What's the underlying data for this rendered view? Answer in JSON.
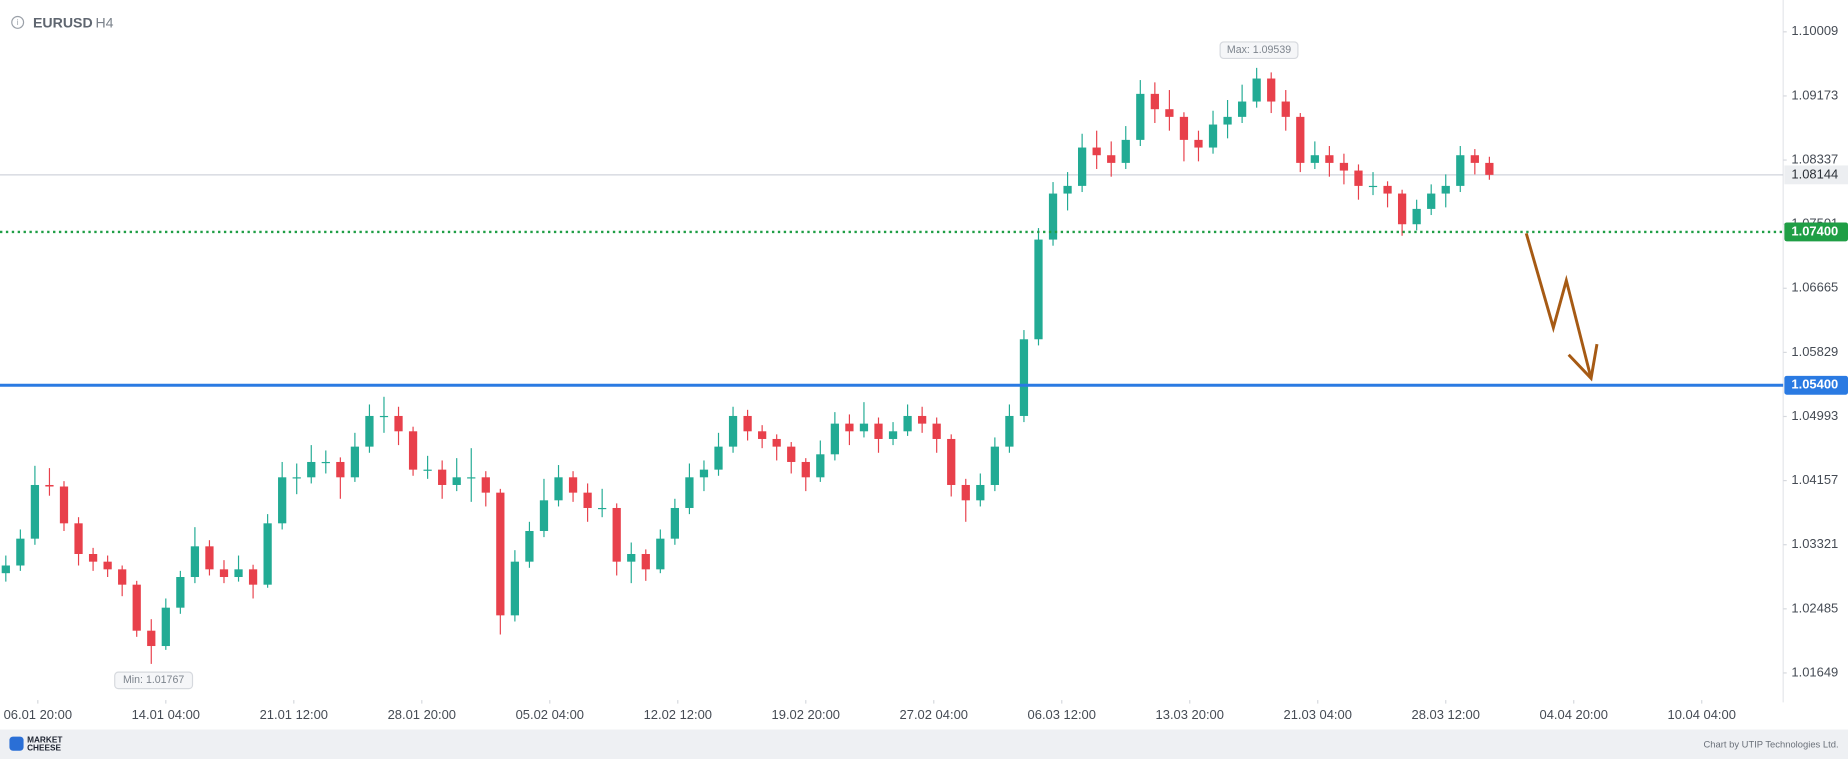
{
  "header": {
    "symbol": "EURUSD",
    "timeframe": "H4"
  },
  "footer": {
    "logo_top": "MARKET",
    "logo_bottom": "CHEESE",
    "credit": "Chart by UTIP Technologies Ltd."
  },
  "chart_data": {
    "type": "candlestick",
    "up_color": "#22ab94",
    "down_color": "#e8404b",
    "xlim": [
      -2,
      611
    ],
    "ylim": [
      1.01326,
      1.10424
    ],
    "xticks": [
      {
        "value": 11,
        "label": "06.01 20:00"
      },
      {
        "value": 55,
        "label": "14.01 04:00"
      },
      {
        "value": 99,
        "label": "21.01 12:00"
      },
      {
        "value": 143,
        "label": "28.01 20:00"
      },
      {
        "value": 187,
        "label": "05.02 04:00"
      },
      {
        "value": 231,
        "label": "12.02 12:00"
      },
      {
        "value": 275,
        "label": "19.02 20:00"
      },
      {
        "value": 319,
        "label": "27.02 04:00"
      },
      {
        "value": 363,
        "label": "06.03 12:00"
      },
      {
        "value": 407,
        "label": "13.03 20:00"
      },
      {
        "value": 451,
        "label": "21.03 04:00"
      },
      {
        "value": 495,
        "label": "28.03 12:00"
      },
      {
        "value": 539,
        "label": "04.04 20:00"
      },
      {
        "value": 583,
        "label": "10.04 04:00"
      }
    ],
    "yticks": [
      1.10009,
      1.09173,
      1.08337,
      1.07501,
      1.06665,
      1.05829,
      1.04993,
      1.04157,
      1.03321,
      1.02485,
      1.01649
    ],
    "x": [
      0,
      5,
      10,
      15,
      20,
      25,
      30,
      35,
      40,
      45,
      50,
      55,
      60,
      65,
      70,
      75,
      80,
      85,
      90,
      95,
      100,
      105,
      110,
      115,
      120,
      125,
      130,
      135,
      140,
      145,
      150,
      155,
      160,
      165,
      170,
      175,
      180,
      185,
      190,
      195,
      200,
      205,
      210,
      215,
      220,
      225,
      230,
      235,
      240,
      245,
      250,
      255,
      260,
      265,
      270,
      275,
      280,
      285,
      290,
      295,
      300,
      305,
      310,
      315,
      320,
      325,
      330,
      335,
      340,
      345,
      350,
      355,
      360,
      365,
      370,
      375,
      380,
      385,
      390,
      395,
      400,
      405,
      410,
      415,
      420,
      425,
      430,
      435,
      440,
      445,
      450,
      455,
      460,
      465,
      470,
      475,
      480,
      485,
      490,
      495,
      500,
      505,
      510
    ],
    "ohlc": [
      [
        1.0295,
        1.0318,
        1.0284,
        1.0305
      ],
      [
        1.0305,
        1.0352,
        1.0298,
        1.034
      ],
      [
        1.034,
        1.0435,
        1.0332,
        1.041
      ],
      [
        1.041,
        1.0432,
        1.0396,
        1.0408
      ],
      [
        1.0408,
        1.0415,
        1.035,
        1.036
      ],
      [
        1.036,
        1.0368,
        1.0305,
        1.032
      ],
      [
        1.032,
        1.0328,
        1.0298,
        1.031
      ],
      [
        1.031,
        1.0318,
        1.029,
        1.03
      ],
      [
        1.03,
        1.0305,
        1.0265,
        1.028
      ],
      [
        1.028,
        1.0285,
        1.0212,
        1.022
      ],
      [
        1.022,
        1.0235,
        1.01767,
        1.02
      ],
      [
        1.02,
        1.0262,
        1.0195,
        1.025
      ],
      [
        1.025,
        1.0298,
        1.0242,
        1.029
      ],
      [
        1.029,
        1.0355,
        1.0282,
        1.033
      ],
      [
        1.033,
        1.0338,
        1.0292,
        1.03
      ],
      [
        1.03,
        1.0312,
        1.0282,
        1.029
      ],
      [
        1.029,
        1.0318,
        1.0284,
        1.03
      ],
      [
        1.03,
        1.0306,
        1.0262,
        1.028
      ],
      [
        1.028,
        1.0372,
        1.0276,
        1.036
      ],
      [
        1.036,
        1.044,
        1.0352,
        1.042
      ],
      [
        1.042,
        1.0438,
        1.0398,
        1.042
      ],
      [
        1.042,
        1.0462,
        1.0412,
        1.044
      ],
      [
        1.044,
        1.0455,
        1.0425,
        1.044
      ],
      [
        1.044,
        1.0446,
        1.0392,
        1.042
      ],
      [
        1.042,
        1.0478,
        1.0414,
        1.046
      ],
      [
        1.046,
        1.0515,
        1.0452,
        1.05
      ],
      [
        1.05,
        1.0525,
        1.0478,
        1.05
      ],
      [
        1.05,
        1.0512,
        1.0462,
        1.048
      ],
      [
        1.048,
        1.0486,
        1.0422,
        1.043
      ],
      [
        1.043,
        1.0448,
        1.0418,
        1.043
      ],
      [
        1.043,
        1.0442,
        1.0392,
        1.041
      ],
      [
        1.041,
        1.0445,
        1.0402,
        1.042
      ],
      [
        1.042,
        1.0458,
        1.0388,
        1.042
      ],
      [
        1.042,
        1.0428,
        1.0382,
        1.04
      ],
      [
        1.04,
        1.0405,
        1.0215,
        1.024
      ],
      [
        1.024,
        1.0325,
        1.0232,
        1.031
      ],
      [
        1.031,
        1.0362,
        1.0302,
        1.035
      ],
      [
        1.035,
        1.0418,
        1.0342,
        1.039
      ],
      [
        1.039,
        1.0436,
        1.0382,
        1.042
      ],
      [
        1.042,
        1.0428,
        1.0388,
        1.04
      ],
      [
        1.04,
        1.0412,
        1.0362,
        1.038
      ],
      [
        1.038,
        1.0405,
        1.0368,
        1.038
      ],
      [
        1.038,
        1.0386,
        1.0292,
        1.031
      ],
      [
        1.031,
        1.0335,
        1.0282,
        1.032
      ],
      [
        1.032,
        1.0326,
        1.0285,
        1.03
      ],
      [
        1.03,
        1.0352,
        1.0295,
        1.034
      ],
      [
        1.034,
        1.0392,
        1.0332,
        1.038
      ],
      [
        1.038,
        1.0438,
        1.0372,
        1.042
      ],
      [
        1.042,
        1.0442,
        1.0402,
        1.043
      ],
      [
        1.043,
        1.0478,
        1.0422,
        1.046
      ],
      [
        1.046,
        1.0512,
        1.0452,
        1.05
      ],
      [
        1.05,
        1.0508,
        1.0468,
        1.048
      ],
      [
        1.048,
        1.0488,
        1.0458,
        1.047
      ],
      [
        1.047,
        1.0476,
        1.0442,
        1.046
      ],
      [
        1.046,
        1.0466,
        1.0425,
        1.044
      ],
      [
        1.044,
        1.0445,
        1.0402,
        1.042
      ],
      [
        1.042,
        1.0468,
        1.0414,
        1.045
      ],
      [
        1.045,
        1.0505,
        1.0442,
        1.049
      ],
      [
        1.049,
        1.0502,
        1.0462,
        1.048
      ],
      [
        1.048,
        1.0518,
        1.0472,
        1.049
      ],
      [
        1.049,
        1.0498,
        1.0452,
        1.047
      ],
      [
        1.047,
        1.0492,
        1.0462,
        1.048
      ],
      [
        1.048,
        1.0515,
        1.0474,
        1.05
      ],
      [
        1.05,
        1.0512,
        1.0478,
        1.049
      ],
      [
        1.049,
        1.0498,
        1.0452,
        1.047
      ],
      [
        1.047,
        1.0476,
        1.0395,
        1.041
      ],
      [
        1.041,
        1.0418,
        1.0362,
        1.039
      ],
      [
        1.039,
        1.0425,
        1.0382,
        1.041
      ],
      [
        1.041,
        1.0472,
        1.0402,
        1.046
      ],
      [
        1.046,
        1.0515,
        1.0452,
        1.05
      ],
      [
        1.05,
        1.0612,
        1.0492,
        1.06
      ],
      [
        1.06,
        1.0745,
        1.0592,
        1.073
      ],
      [
        1.073,
        1.0805,
        1.0722,
        1.079
      ],
      [
        1.079,
        1.0818,
        1.0768,
        1.08
      ],
      [
        1.08,
        1.0868,
        1.0792,
        1.085
      ],
      [
        1.085,
        1.0872,
        1.0822,
        1.084
      ],
      [
        1.084,
        1.0858,
        1.0812,
        1.083
      ],
      [
        1.083,
        1.0878,
        1.0822,
        1.086
      ],
      [
        1.086,
        1.0938,
        1.0852,
        1.092
      ],
      [
        1.092,
        1.0935,
        1.0882,
        1.09
      ],
      [
        1.09,
        1.0925,
        1.0872,
        1.089
      ],
      [
        1.089,
        1.0896,
        1.0832,
        1.086
      ],
      [
        1.086,
        1.0872,
        1.0832,
        1.085
      ],
      [
        1.085,
        1.0898,
        1.0842,
        1.088
      ],
      [
        1.088,
        1.0912,
        1.0862,
        1.089
      ],
      [
        1.089,
        1.0932,
        1.0882,
        1.091
      ],
      [
        1.091,
        1.09539,
        1.0902,
        1.094
      ],
      [
        1.094,
        1.0948,
        1.0895,
        1.091
      ],
      [
        1.091,
        1.0925,
        1.0872,
        1.089
      ],
      [
        1.089,
        1.0895,
        1.0818,
        1.083
      ],
      [
        1.083,
        1.0858,
        1.0822,
        1.084
      ],
      [
        1.084,
        1.0852,
        1.0812,
        1.083
      ],
      [
        1.083,
        1.0842,
        1.0802,
        1.082
      ],
      [
        1.082,
        1.0828,
        1.0782,
        1.08
      ],
      [
        1.08,
        1.0818,
        1.0788,
        1.08
      ],
      [
        1.08,
        1.0806,
        1.0772,
        1.079
      ],
      [
        1.079,
        1.0795,
        1.0735,
        1.075
      ],
      [
        1.075,
        1.0782,
        1.0742,
        1.077
      ],
      [
        1.077,
        1.0802,
        1.0762,
        1.079
      ],
      [
        1.079,
        1.0815,
        1.0772,
        1.08
      ],
      [
        1.08,
        1.0852,
        1.0792,
        1.084
      ],
      [
        1.084,
        1.0848,
        1.0815,
        1.083
      ],
      [
        1.083,
        1.0838,
        1.0808,
        1.08144
      ]
    ],
    "max_label": {
      "value": 1.09539,
      "label": "Max: 1.09539"
    },
    "min_label": {
      "value": 1.01767,
      "label": "Min: 1.01767"
    },
    "current_price": {
      "value": 1.08144,
      "label": "1.08144",
      "color": "#d0d4dc"
    },
    "levels": [
      {
        "value": 1.074,
        "label": "1.07400",
        "color": "#1f9e45",
        "style": "dotted"
      },
      {
        "value": 1.054,
        "label": "1.05400",
        "color": "#2a7ae2",
        "style": "solid"
      }
    ]
  }
}
